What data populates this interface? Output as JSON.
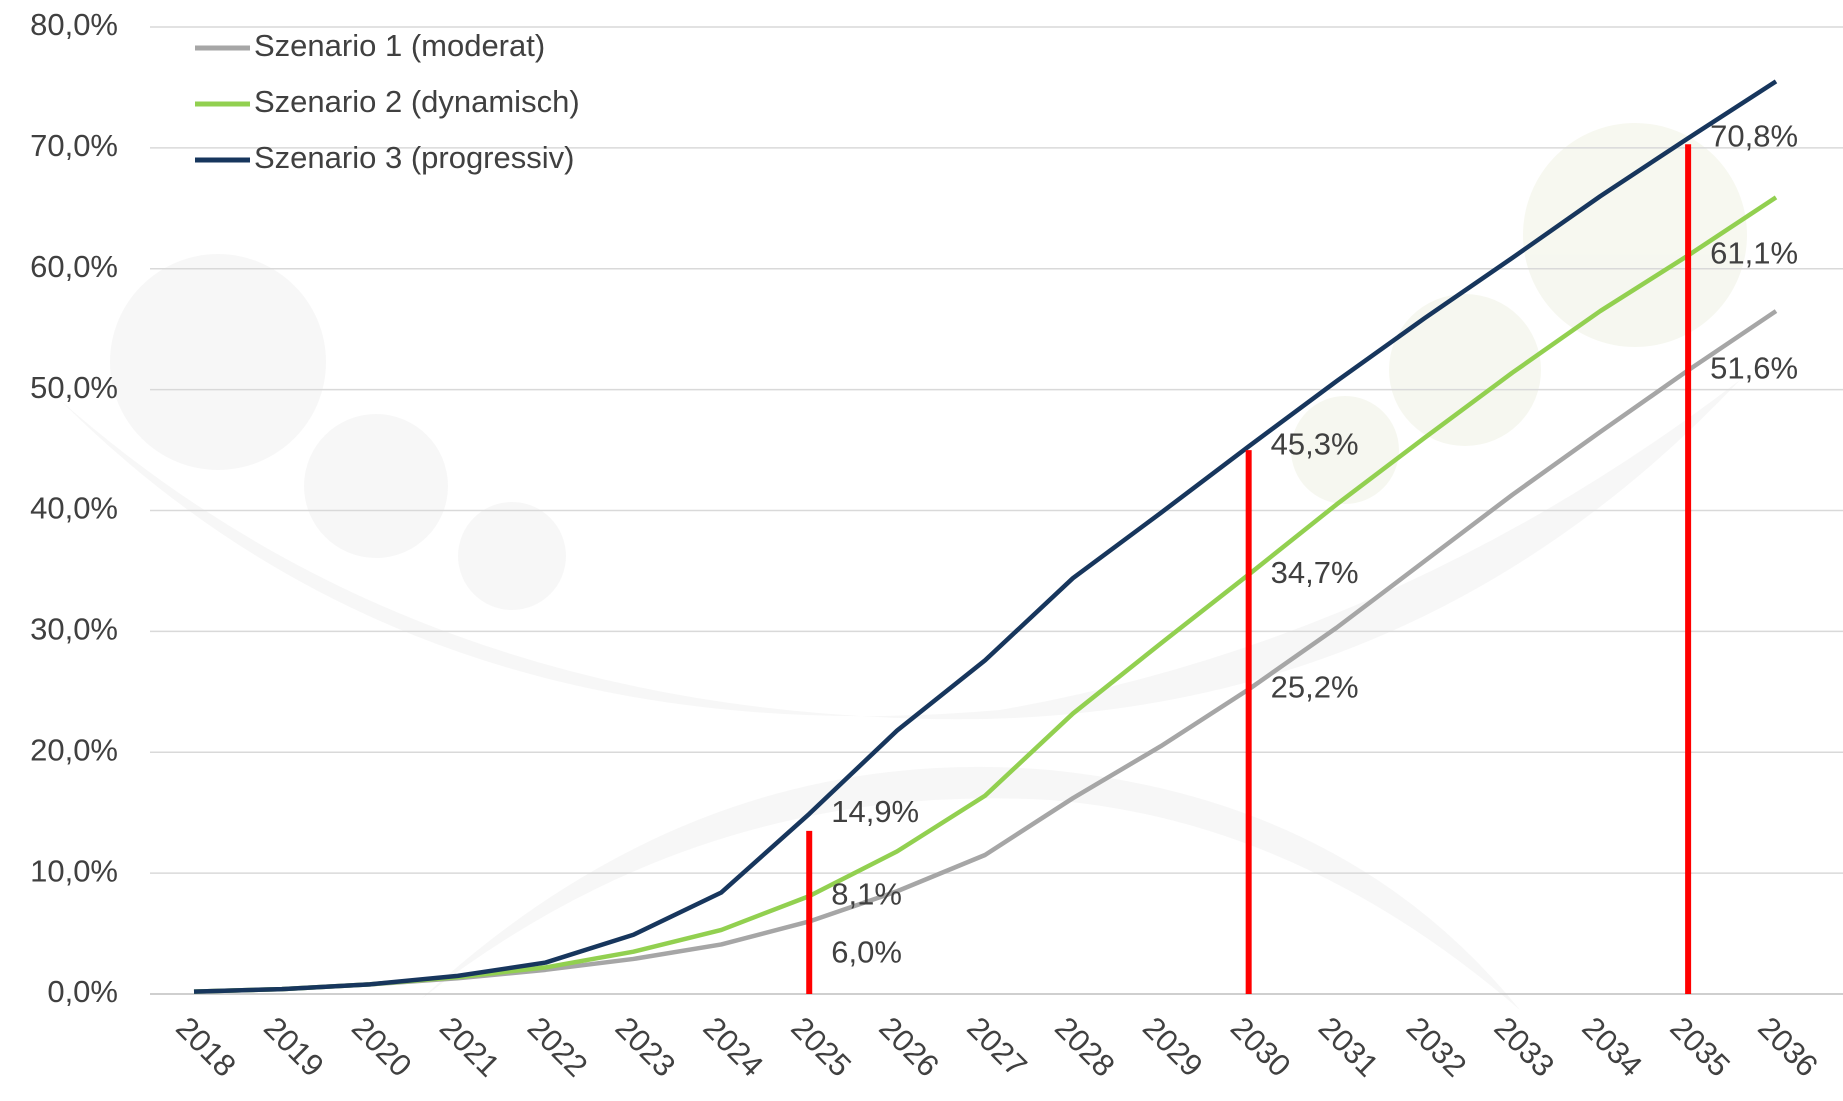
{
  "chart_data": {
    "type": "line",
    "categories": [
      "2018",
      "2019",
      "2020",
      "2021",
      "2022",
      "2023",
      "2024",
      "2025",
      "2026",
      "2027",
      "2028",
      "2029",
      "2030",
      "2031",
      "2032",
      "2033",
      "2034",
      "2035",
      "2036"
    ],
    "series": [
      {
        "name": "Szenario 1 (moderat)",
        "color": "#a6a6a6",
        "values": [
          0.2,
          0.4,
          0.8,
          1.3,
          2.0,
          2.9,
          4.1,
          6.0,
          8.5,
          11.5,
          16.2,
          20.5,
          25.2,
          30.3,
          35.8,
          41.3,
          46.5,
          51.6,
          56.5
        ],
        "value_labels": [
          null,
          null,
          null,
          null,
          null,
          null,
          null,
          "6,0%",
          null,
          null,
          null,
          null,
          "25,2%",
          null,
          null,
          null,
          null,
          "51,6%",
          null
        ]
      },
      {
        "name": "Szenario 2 (dynamisch)",
        "color": "#92d050",
        "values": [
          0.2,
          0.4,
          0.8,
          1.4,
          2.2,
          3.5,
          5.3,
          8.1,
          11.8,
          16.4,
          23.2,
          29.0,
          34.7,
          40.5,
          46.0,
          51.4,
          56.5,
          61.1,
          65.9
        ],
        "value_labels": [
          null,
          null,
          null,
          null,
          null,
          null,
          null,
          "8,1%",
          null,
          null,
          null,
          null,
          "34,7%",
          null,
          null,
          null,
          null,
          "61,1%",
          null
        ]
      },
      {
        "name": "Szenario 3 (progressiv)",
        "color": "#17365d",
        "values": [
          0.2,
          0.4,
          0.8,
          1.5,
          2.6,
          4.9,
          8.4,
          14.9,
          21.8,
          27.6,
          34.4,
          39.8,
          45.3,
          50.7,
          55.9,
          60.9,
          66.0,
          70.8,
          75.5
        ],
        "value_labels": [
          null,
          null,
          null,
          null,
          null,
          null,
          null,
          "14,9%",
          null,
          null,
          null,
          null,
          "45,3%",
          null,
          null,
          null,
          null,
          "70,8%",
          null
        ]
      }
    ],
    "highlight_lines": {
      "color": "#ff0000",
      "categories": [
        "2025",
        "2030",
        "2035"
      ],
      "values": [
        13.5,
        45.0,
        70.3
      ]
    },
    "ylim": [
      0,
      80
    ],
    "yticks": [
      {
        "value": 0,
        "label": "0,0%"
      },
      {
        "value": 10,
        "label": "10,0%"
      },
      {
        "value": 20,
        "label": "20,0%"
      },
      {
        "value": 30,
        "label": "30,0%"
      },
      {
        "value": 40,
        "label": "40,0%"
      },
      {
        "value": 50,
        "label": "50,0%"
      },
      {
        "value": 60,
        "label": "60,0%"
      },
      {
        "value": 70,
        "label": "70,0%"
      },
      {
        "value": 80,
        "label": "80,0%"
      }
    ],
    "grid": true,
    "legend": "top-left"
  }
}
